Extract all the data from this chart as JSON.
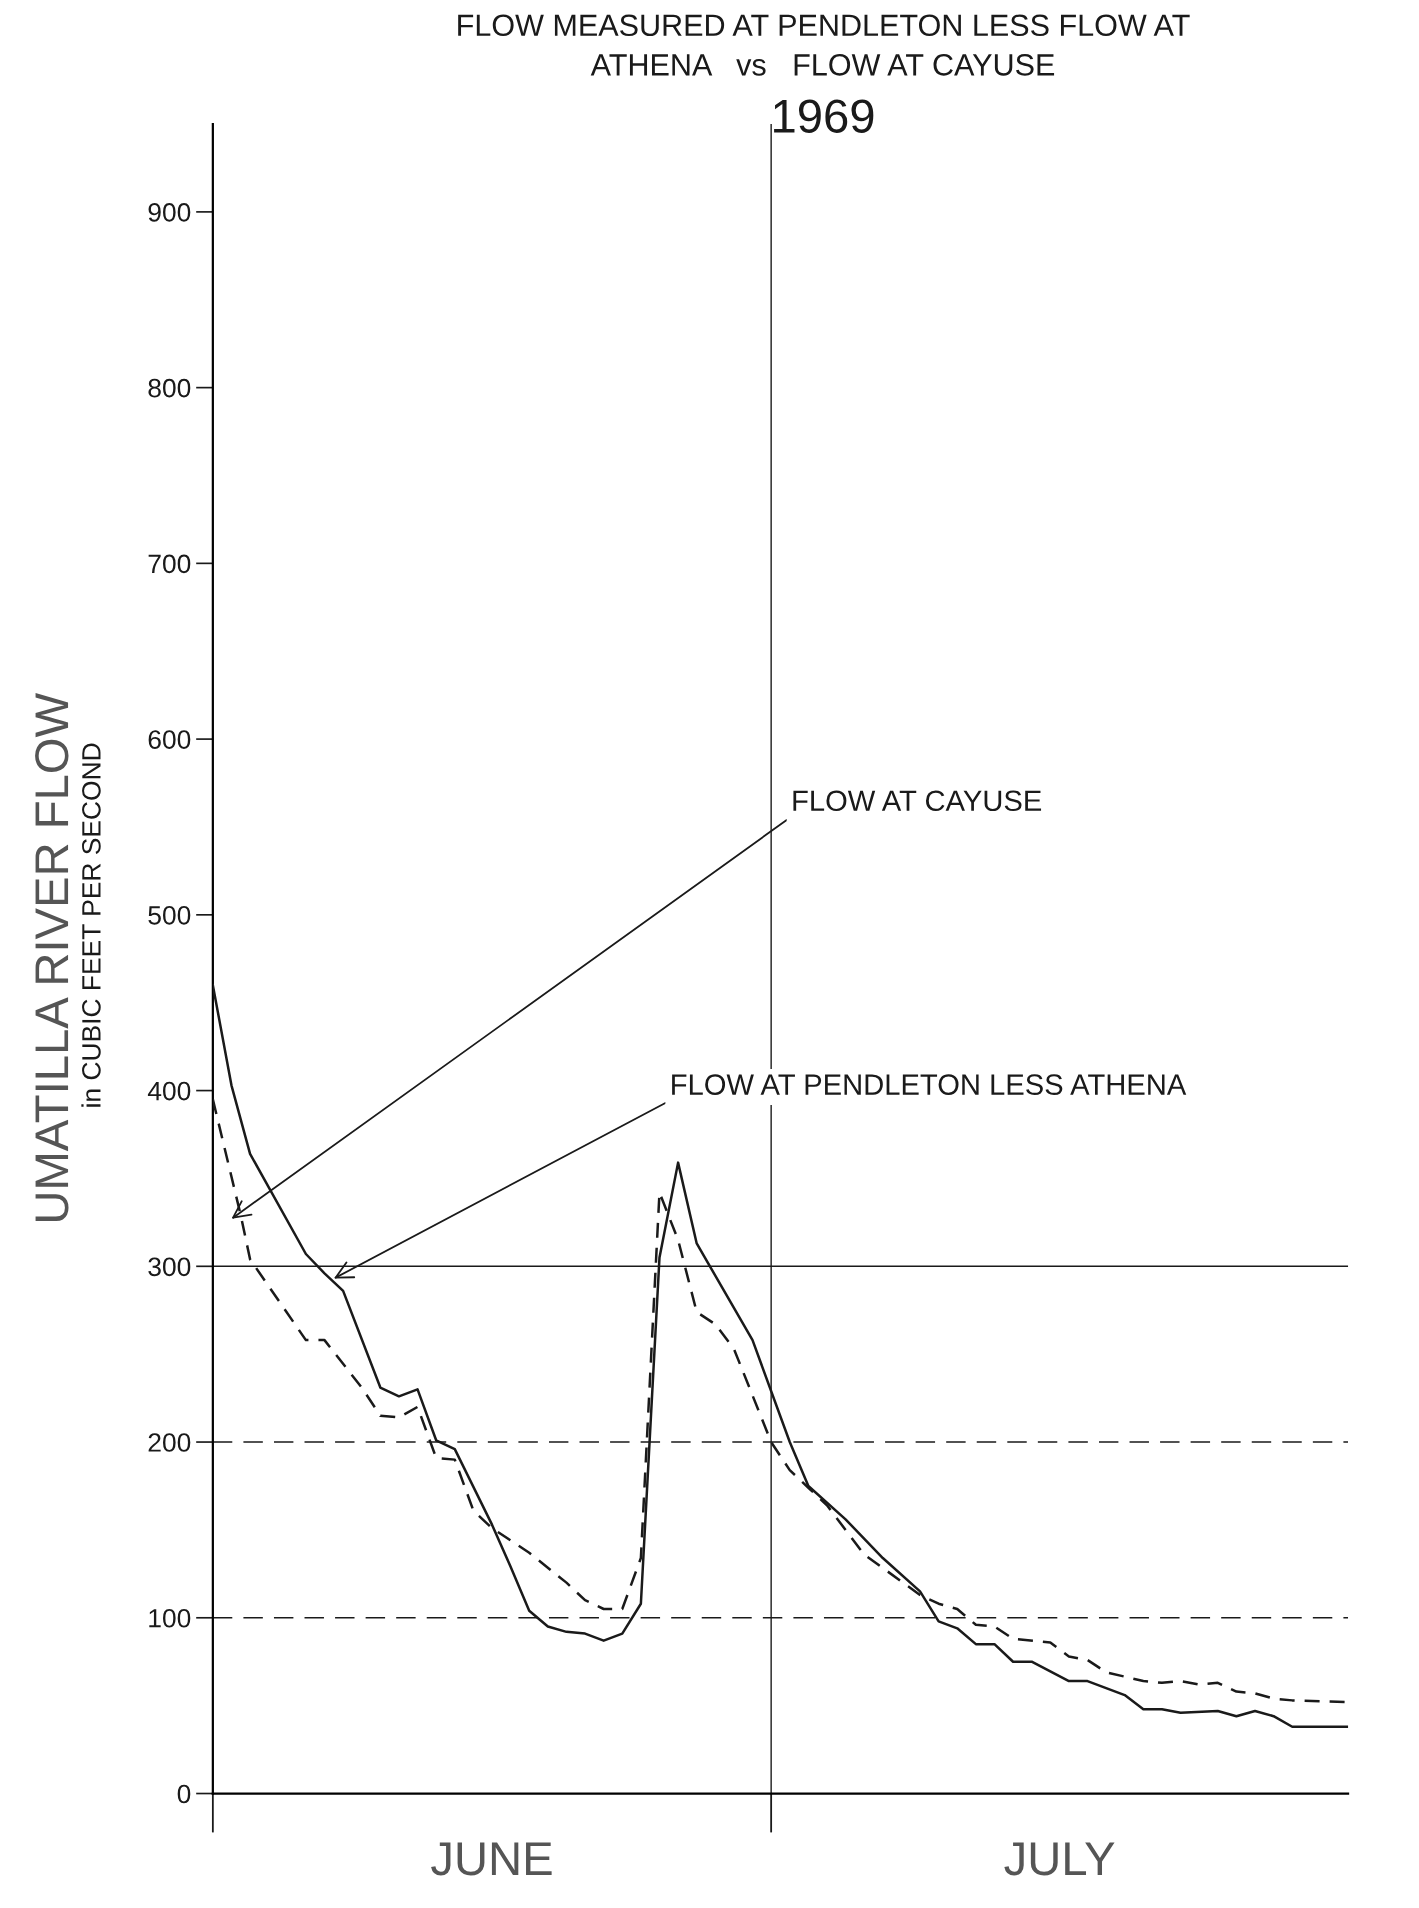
{
  "chart_data": {
    "type": "line",
    "title": "FLOW MEASURED AT PENDLETON LESS FLOW AT\nATHENA   vs   FLOW AT CAYUSE",
    "subtitle": "1969",
    "ylabel": "UMATILLA RIVER FLOW\nin CUBIC FEET PER SECOND",
    "xlim": [
      "1969-06-01",
      "1969-08-01"
    ],
    "xticks": [
      {
        "value": "1969-06-01",
        "label": null
      },
      {
        "value": "1969-06-16",
        "label": "JUNE"
      },
      {
        "value": "1969-07-01",
        "label": null
      },
      {
        "value": "1969-07-16T12:00",
        "label": "JULY"
      }
    ],
    "ylim": [
      0,
      950
    ],
    "yticks": [
      0,
      100,
      200,
      300,
      400,
      500,
      600,
      700,
      800,
      900
    ],
    "grid": false,
    "marker": "none",
    "series": [
      {
        "color": "#1a1a1a",
        "line_style": "solid",
        "x": [
          "1969-06-01",
          "1969-06-02",
          "1969-06-03",
          "1969-06-06",
          "1969-06-07",
          "1969-06-08",
          "1969-06-10",
          "1969-06-11",
          "1969-06-12",
          "1969-06-13",
          "1969-06-14",
          "1969-06-16",
          "1969-06-17",
          "1969-06-18",
          "1969-06-19",
          "1969-06-20",
          "1969-06-21",
          "1969-06-22",
          "1969-06-23",
          "1969-06-24",
          "1969-06-25",
          "1969-06-26",
          "1969-06-27",
          "1969-06-30",
          "1969-07-02",
          "1969-07-03",
          "1969-07-05",
          "1969-07-07",
          "1969-07-09",
          "1969-07-10",
          "1969-07-11",
          "1969-07-12",
          "1969-07-13",
          "1969-07-14",
          "1969-07-15",
          "1969-07-17",
          "1969-07-18",
          "1969-07-20",
          "1969-07-21",
          "1969-07-22",
          "1969-07-23",
          "1969-07-25",
          "1969-07-26",
          "1969-07-27",
          "1969-07-28",
          "1969-07-29",
          "1969-08-01"
        ],
        "values": [
          460,
          403,
          364,
          307,
          296,
          286,
          231,
          226,
          230,
          201,
          196,
          153,
          129,
          104,
          95,
          92,
          91,
          87,
          91,
          108,
          305,
          359,
          313,
          258,
          200,
          175,
          156,
          134,
          115,
          98,
          94,
          85,
          85,
          75,
          75,
          64,
          64,
          56,
          48,
          48,
          46,
          47,
          44,
          47,
          44,
          38,
          38
        ]
      },
      {
        "color": "#1a1a1a",
        "line_style": "dashed",
        "x": [
          "1969-06-01",
          "1969-06-02T12:00",
          "1969-06-03",
          "1969-06-06",
          "1969-06-07",
          "1969-06-09",
          "1969-06-10",
          "1969-06-11",
          "1969-06-12",
          "1969-06-13",
          "1969-06-14",
          "1969-06-15",
          "1969-06-16",
          "1969-06-18",
          "1969-06-20",
          "1969-06-21",
          "1969-06-22",
          "1969-06-23",
          "1969-06-24",
          "1969-06-25",
          "1969-06-26",
          "1969-06-27",
          "1969-06-28",
          "1969-06-29",
          "1969-07-01",
          "1969-07-02",
          "1969-07-03",
          "1969-07-04",
          "1969-07-06",
          "1969-07-09",
          "1969-07-10",
          "1969-07-11",
          "1969-07-12",
          "1969-07-13",
          "1969-07-14",
          "1969-07-16",
          "1969-07-17",
          "1969-07-18",
          "1969-07-19",
          "1969-07-21",
          "1969-07-22",
          "1969-07-23",
          "1969-07-24",
          "1969-07-25",
          "1969-07-26",
          "1969-07-27",
          "1969-07-28",
          "1969-07-29",
          "1969-08-01"
        ],
        "values": [
          395,
          329,
          304,
          258,
          258,
          231,
          215,
          214,
          220,
          191,
          190,
          161,
          151,
          137,
          120,
          110,
          105,
          105,
          134,
          342,
          315,
          274,
          267,
          253,
          200,
          184,
          174,
          164,
          136,
          113,
          108,
          105,
          96,
          95,
          88,
          86,
          78,
          76,
          69,
          64,
          63,
          64,
          62,
          63,
          58,
          57,
          54,
          53,
          52
        ]
      }
    ],
    "ref_lines": [
      {
        "axis": "y",
        "value": 100,
        "line_style": "dashed"
      },
      {
        "axis": "y",
        "value": 200,
        "line_style": "dashed"
      },
      {
        "axis": "y",
        "value": 300,
        "line_style": "solid"
      },
      {
        "axis": "x",
        "value": "1969-07-01",
        "line_style": "solid"
      }
    ],
    "annotations": [
      {
        "text": "FLOW AT CAYUSE",
        "x": "1969-06-02",
        "y": 327
      },
      {
        "text": "FLOW AT PENDLETON LESS ATHENA",
        "x": "1969-06-07T12:00",
        "y": 293
      }
    ]
  }
}
